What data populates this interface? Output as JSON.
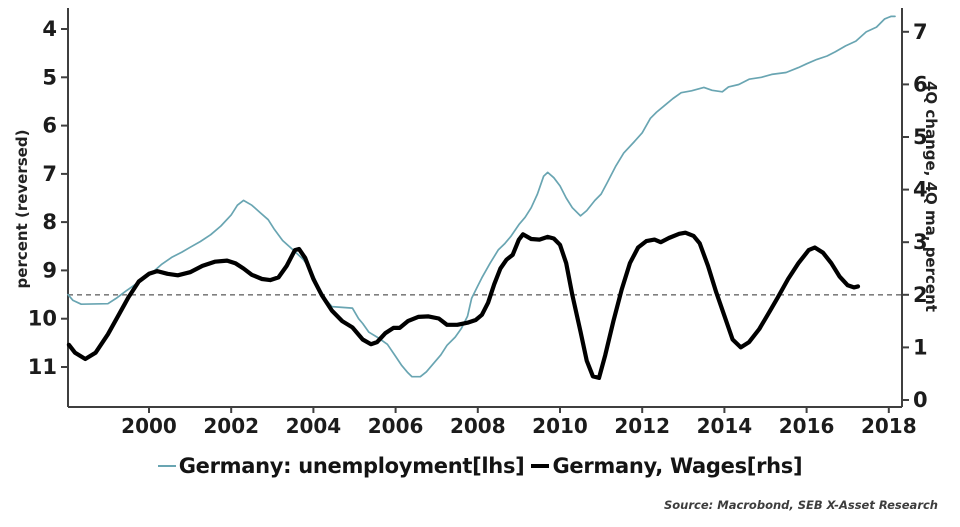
{
  "source_note": "Source: Macrobond, SEB X-Asset Research",
  "chart_data": {
    "type": "line",
    "title": "",
    "grid": "off",
    "legend_position": "bottom-center",
    "x_axis": {
      "range": [
        1998.0,
        2018.35
      ],
      "ticks": [
        2000,
        2002,
        2004,
        2006,
        2008,
        2010,
        2012,
        2014,
        2016,
        2018
      ]
    },
    "left_axis": {
      "label": "percent (reversed)",
      "reversed": true,
      "ticks": [
        4,
        5,
        6,
        7,
        8,
        9,
        10,
        11
      ]
    },
    "right_axis": {
      "label": "4Q change, 4Q ma, percent",
      "ticks": [
        0,
        1,
        2,
        3,
        4,
        5,
        6,
        7
      ]
    },
    "reference_line": {
      "axis": "rhs",
      "value": 2,
      "style": "dashed",
      "color": "#7f7f7f"
    },
    "axis_color": "#3f3f3f",
    "series": [
      {
        "name": "Germany: unemployment[lhs]",
        "axis": "lhs",
        "color": "#69a5b2",
        "width": 1.7,
        "points": [
          [
            1998.03,
            9.5
          ],
          [
            1998.15,
            9.62
          ],
          [
            1998.35,
            9.7
          ],
          [
            1999.0,
            9.69
          ],
          [
            1999.2,
            9.58
          ],
          [
            1999.45,
            9.42
          ],
          [
            1999.65,
            9.3
          ],
          [
            1999.85,
            9.18
          ],
          [
            2000.1,
            9.03
          ],
          [
            2000.3,
            8.88
          ],
          [
            2000.55,
            8.73
          ],
          [
            2000.8,
            8.62
          ],
          [
            2001.0,
            8.52
          ],
          [
            2001.25,
            8.4
          ],
          [
            2001.5,
            8.26
          ],
          [
            2001.75,
            8.08
          ],
          [
            2002.0,
            7.85
          ],
          [
            2002.15,
            7.65
          ],
          [
            2002.3,
            7.55
          ],
          [
            2002.5,
            7.65
          ],
          [
            2002.7,
            7.8
          ],
          [
            2002.9,
            7.95
          ],
          [
            2003.05,
            8.15
          ],
          [
            2003.25,
            8.38
          ],
          [
            2003.5,
            8.57
          ],
          [
            2003.75,
            8.77
          ],
          [
            2003.95,
            9.0
          ],
          [
            2004.1,
            9.3
          ],
          [
            2004.3,
            9.6
          ],
          [
            2004.45,
            9.75
          ],
          [
            2004.95,
            9.78
          ],
          [
            2005.1,
            10.0
          ],
          [
            2005.2,
            10.1
          ],
          [
            2005.35,
            10.28
          ],
          [
            2005.55,
            10.38
          ],
          [
            2005.8,
            10.53
          ],
          [
            2006.0,
            10.78
          ],
          [
            2006.15,
            10.97
          ],
          [
            2006.3,
            11.12
          ],
          [
            2006.4,
            11.2
          ],
          [
            2006.6,
            11.2
          ],
          [
            2006.75,
            11.1
          ],
          [
            2006.95,
            10.9
          ],
          [
            2007.1,
            10.75
          ],
          [
            2007.25,
            10.55
          ],
          [
            2007.45,
            10.38
          ],
          [
            2007.6,
            10.2
          ],
          [
            2007.75,
            9.95
          ],
          [
            2007.85,
            9.58
          ],
          [
            2008.0,
            9.32
          ],
          [
            2008.1,
            9.15
          ],
          [
            2008.3,
            8.85
          ],
          [
            2008.5,
            8.57
          ],
          [
            2008.65,
            8.45
          ],
          [
            2008.8,
            8.3
          ],
          [
            2009.0,
            8.05
          ],
          [
            2009.15,
            7.9
          ],
          [
            2009.3,
            7.7
          ],
          [
            2009.45,
            7.42
          ],
          [
            2009.6,
            7.05
          ],
          [
            2009.7,
            6.97
          ],
          [
            2009.85,
            7.08
          ],
          [
            2010.0,
            7.25
          ],
          [
            2010.15,
            7.5
          ],
          [
            2010.3,
            7.7
          ],
          [
            2010.5,
            7.87
          ],
          [
            2010.65,
            7.76
          ],
          [
            2010.85,
            7.55
          ],
          [
            2011.0,
            7.42
          ],
          [
            2011.15,
            7.18
          ],
          [
            2011.35,
            6.85
          ],
          [
            2011.55,
            6.57
          ],
          [
            2011.8,
            6.34
          ],
          [
            2012.0,
            6.15
          ],
          [
            2012.2,
            5.85
          ],
          [
            2012.35,
            5.72
          ],
          [
            2012.55,
            5.58
          ],
          [
            2012.75,
            5.44
          ],
          [
            2012.95,
            5.32
          ],
          [
            2013.2,
            5.28
          ],
          [
            2013.5,
            5.21
          ],
          [
            2013.7,
            5.27
          ],
          [
            2013.95,
            5.3
          ],
          [
            2014.1,
            5.2
          ],
          [
            2014.35,
            5.15
          ],
          [
            2014.6,
            5.04
          ],
          [
            2014.9,
            5.0
          ],
          [
            2015.15,
            4.94
          ],
          [
            2015.5,
            4.9
          ],
          [
            2015.8,
            4.8
          ],
          [
            2016.0,
            4.72
          ],
          [
            2016.25,
            4.63
          ],
          [
            2016.5,
            4.56
          ],
          [
            2016.7,
            4.47
          ],
          [
            2016.95,
            4.35
          ],
          [
            2017.2,
            4.25
          ],
          [
            2017.45,
            4.06
          ],
          [
            2017.7,
            3.96
          ],
          [
            2017.9,
            3.79
          ],
          [
            2018.05,
            3.74
          ],
          [
            2018.15,
            3.74
          ]
        ]
      },
      {
        "name": "Germany, Wages[rhs]",
        "axis": "rhs",
        "color": "#000000",
        "width": 4.2,
        "points": [
          [
            1998.05,
            1.05
          ],
          [
            1998.2,
            0.9
          ],
          [
            1998.45,
            0.78
          ],
          [
            1998.7,
            0.9
          ],
          [
            1999.0,
            1.25
          ],
          [
            1999.25,
            1.6
          ],
          [
            1999.5,
            1.95
          ],
          [
            1999.75,
            2.25
          ],
          [
            2000.0,
            2.4
          ],
          [
            2000.2,
            2.45
          ],
          [
            2000.45,
            2.4
          ],
          [
            2000.7,
            2.37
          ],
          [
            2001.0,
            2.43
          ],
          [
            2001.3,
            2.55
          ],
          [
            2001.6,
            2.63
          ],
          [
            2001.9,
            2.65
          ],
          [
            2002.1,
            2.6
          ],
          [
            2002.3,
            2.5
          ],
          [
            2002.5,
            2.38
          ],
          [
            2002.75,
            2.3
          ],
          [
            2002.95,
            2.28
          ],
          [
            2003.15,
            2.33
          ],
          [
            2003.35,
            2.55
          ],
          [
            2003.55,
            2.85
          ],
          [
            2003.65,
            2.87
          ],
          [
            2003.8,
            2.7
          ],
          [
            2004.0,
            2.3
          ],
          [
            2004.2,
            2.0
          ],
          [
            2004.45,
            1.7
          ],
          [
            2004.7,
            1.5
          ],
          [
            2004.95,
            1.38
          ],
          [
            2005.2,
            1.15
          ],
          [
            2005.4,
            1.06
          ],
          [
            2005.55,
            1.1
          ],
          [
            2005.75,
            1.27
          ],
          [
            2005.95,
            1.37
          ],
          [
            2006.1,
            1.37
          ],
          [
            2006.3,
            1.5
          ],
          [
            2006.55,
            1.58
          ],
          [
            2006.8,
            1.59
          ],
          [
            2007.05,
            1.55
          ],
          [
            2007.25,
            1.43
          ],
          [
            2007.5,
            1.43
          ],
          [
            2007.75,
            1.47
          ],
          [
            2007.95,
            1.52
          ],
          [
            2008.1,
            1.62
          ],
          [
            2008.25,
            1.85
          ],
          [
            2008.4,
            2.2
          ],
          [
            2008.55,
            2.5
          ],
          [
            2008.7,
            2.67
          ],
          [
            2008.85,
            2.76
          ],
          [
            2009.0,
            3.05
          ],
          [
            2009.1,
            3.15
          ],
          [
            2009.3,
            3.06
          ],
          [
            2009.5,
            3.05
          ],
          [
            2009.7,
            3.1
          ],
          [
            2009.85,
            3.07
          ],
          [
            2010.0,
            2.95
          ],
          [
            2010.15,
            2.6
          ],
          [
            2010.3,
            2.0
          ],
          [
            2010.5,
            1.3
          ],
          [
            2010.65,
            0.75
          ],
          [
            2010.8,
            0.45
          ],
          [
            2010.95,
            0.42
          ],
          [
            2011.1,
            0.85
          ],
          [
            2011.3,
            1.5
          ],
          [
            2011.5,
            2.1
          ],
          [
            2011.7,
            2.6
          ],
          [
            2011.9,
            2.9
          ],
          [
            2012.1,
            3.02
          ],
          [
            2012.3,
            3.05
          ],
          [
            2012.45,
            3.0
          ],
          [
            2012.65,
            3.08
          ],
          [
            2012.9,
            3.16
          ],
          [
            2013.05,
            3.18
          ],
          [
            2013.25,
            3.12
          ],
          [
            2013.4,
            2.98
          ],
          [
            2013.6,
            2.55
          ],
          [
            2013.8,
            2.05
          ],
          [
            2014.0,
            1.6
          ],
          [
            2014.2,
            1.15
          ],
          [
            2014.4,
            1.0
          ],
          [
            2014.6,
            1.1
          ],
          [
            2014.85,
            1.35
          ],
          [
            2015.1,
            1.68
          ],
          [
            2015.3,
            1.95
          ],
          [
            2015.55,
            2.3
          ],
          [
            2015.8,
            2.6
          ],
          [
            2016.05,
            2.85
          ],
          [
            2016.2,
            2.9
          ],
          [
            2016.4,
            2.8
          ],
          [
            2016.6,
            2.6
          ],
          [
            2016.8,
            2.35
          ],
          [
            2017.0,
            2.18
          ],
          [
            2017.15,
            2.14
          ],
          [
            2017.25,
            2.16
          ]
        ]
      }
    ]
  }
}
